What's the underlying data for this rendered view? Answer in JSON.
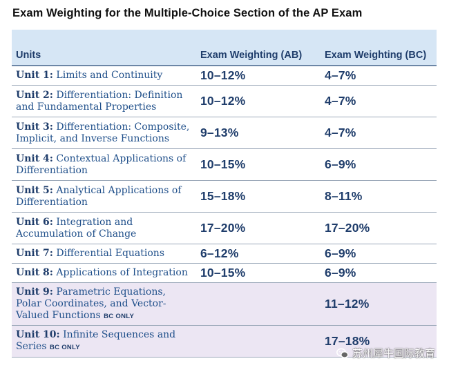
{
  "title": "Exam Weighting for the Multiple-Choice Section of the AP Exam",
  "table": {
    "headers": [
      "Units",
      "Exam Weighting (AB)",
      "Exam Weighting (BC)"
    ],
    "rows": [
      {
        "unit_label": "Unit 1:",
        "unit_name": "Limits and Continuity",
        "bc_only": "",
        "ab": "10–12%",
        "bc": "4–7%"
      },
      {
        "unit_label": "Unit 2:",
        "unit_name": "Differentiation: Definition and Fundamental Properties",
        "bc_only": "",
        "ab": "10–12%",
        "bc": "4–7%"
      },
      {
        "unit_label": "Unit 3:",
        "unit_name": "Differentiation: Composite, Implicit, and Inverse Functions",
        "bc_only": "",
        "ab": "9–13%",
        "bc": "4–7%"
      },
      {
        "unit_label": "Unit 4:",
        "unit_name": "Contextual Applications of Differentiation",
        "bc_only": "",
        "ab": "10–15%",
        "bc": "6–9%"
      },
      {
        "unit_label": "Unit 5:",
        "unit_name": "Analytical Applications of Differentiation",
        "bc_only": "",
        "ab": "15–18%",
        "bc": "8–11%"
      },
      {
        "unit_label": "Unit 6:",
        "unit_name": "Integration and Accumulation of Change",
        "bc_only": "",
        "ab": "17–20%",
        "bc": "17–20%"
      },
      {
        "unit_label": "Unit 7:",
        "unit_name": "Differential Equations",
        "bc_only": "",
        "ab": "6–12%",
        "bc": "6–9%"
      },
      {
        "unit_label": "Unit 8:",
        "unit_name": "Applications of Integration",
        "bc_only": "",
        "ab": "10–15%",
        "bc": "6–9%"
      },
      {
        "unit_label": "Unit 9:",
        "unit_name": "Parametric Equations, Polar Coordinates, and Vector-Valued Functions",
        "bc_only": "BC ONLY",
        "ab": "",
        "bc": "11–12%"
      },
      {
        "unit_label": "Unit 10:",
        "unit_name": "Infinite Sequences and Series",
        "bc_only": "BC ONLY",
        "ab": "",
        "bc": "17–18%"
      }
    ]
  },
  "watermark": {
    "text": "苏州犀牛国际教育",
    "icon": "wechat-icon"
  }
}
